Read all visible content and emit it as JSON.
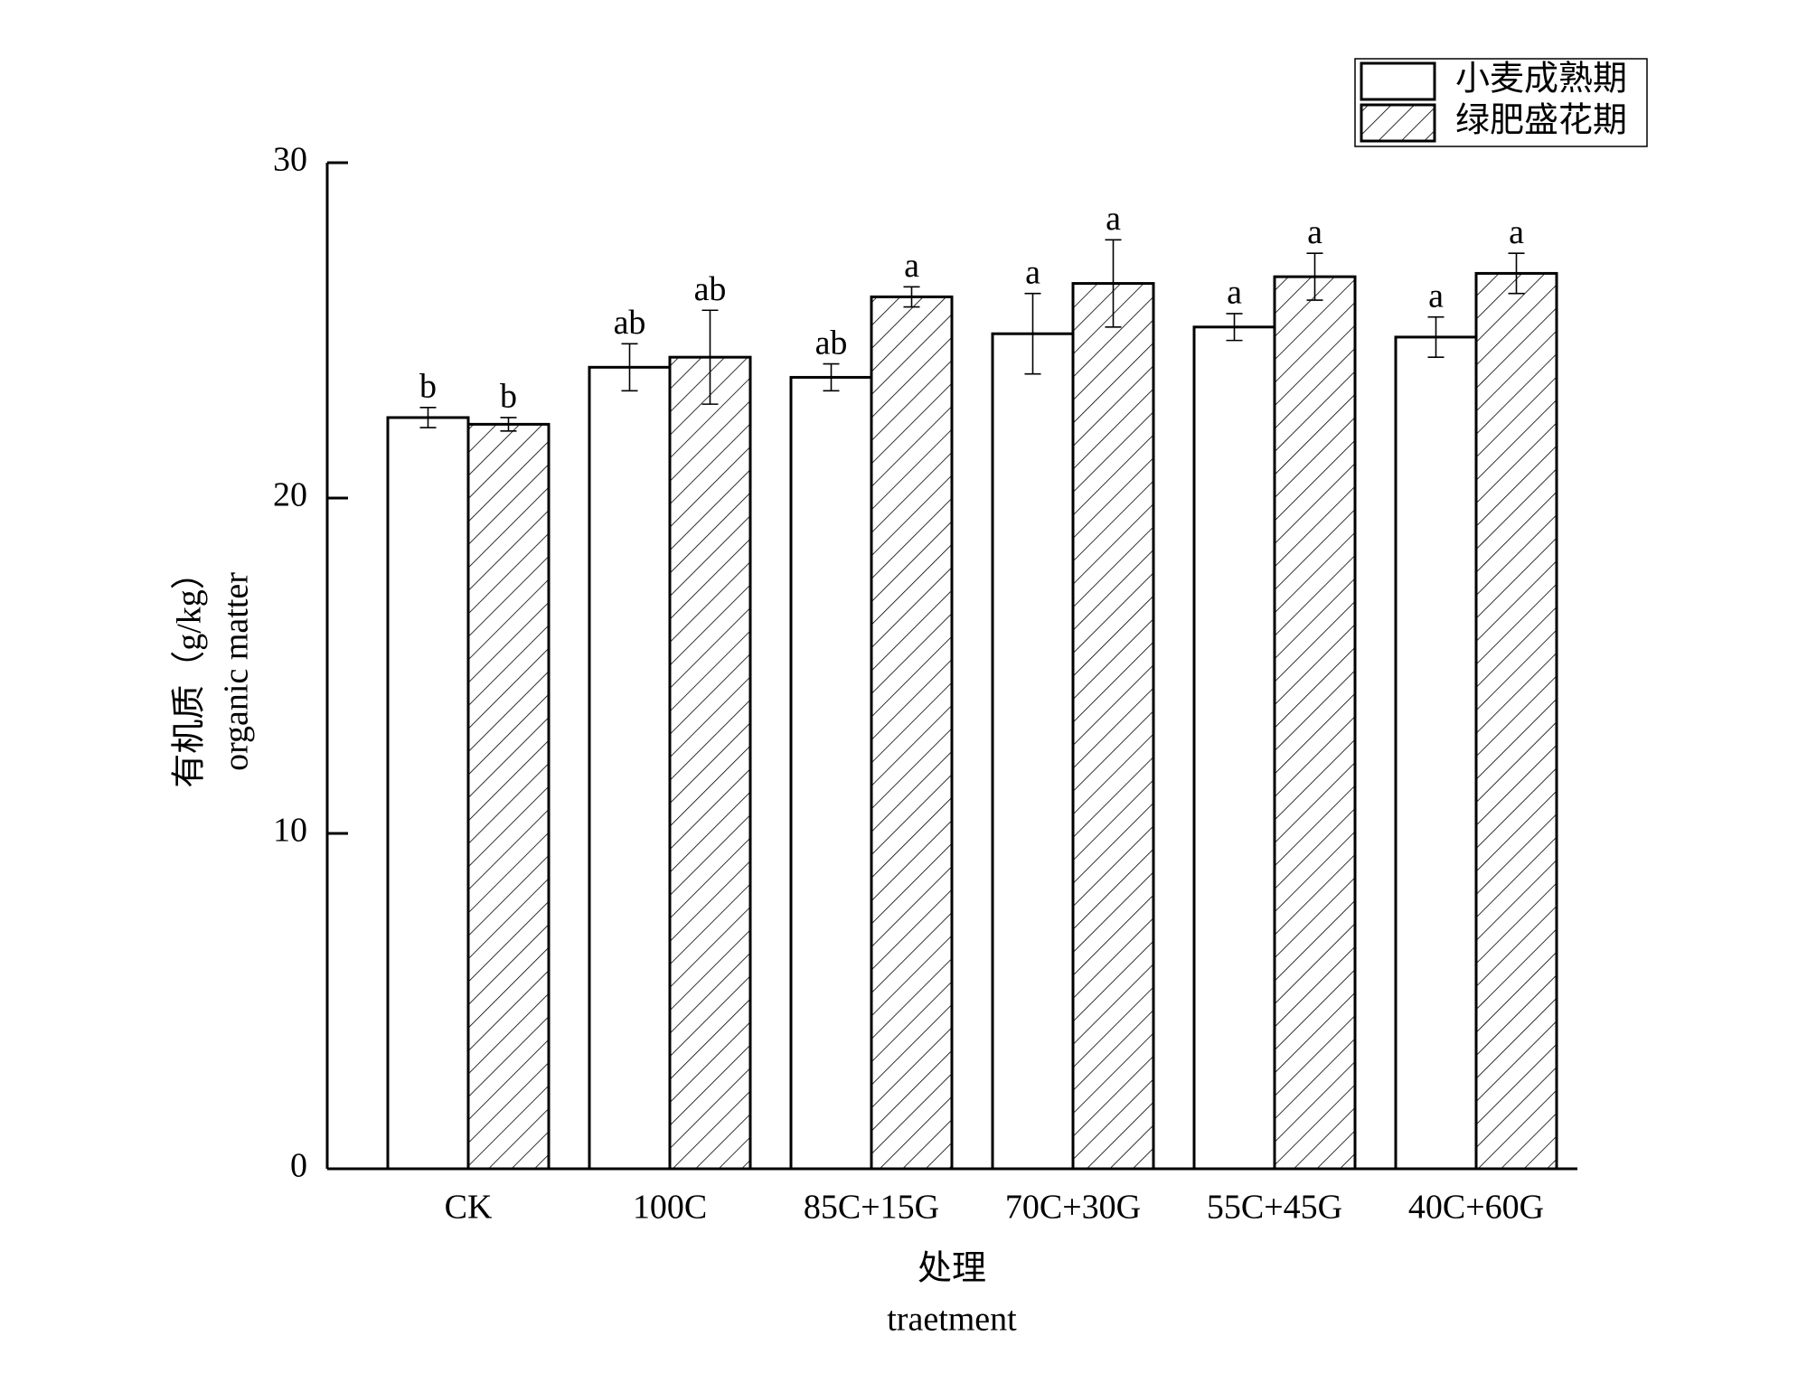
{
  "chart_data": {
    "type": "bar",
    "categories": [
      "CK",
      "100C",
      "85C+15G",
      "70C+30G",
      "55C+45G",
      "40C+60G"
    ],
    "series": [
      {
        "name": "小麦成熟期",
        "color": "#ffffff",
        "hatch": false,
        "values": [
          22.4,
          23.9,
          23.6,
          24.9,
          25.1,
          24.8
        ],
        "errors": [
          0.3,
          0.7,
          0.4,
          1.2,
          0.4,
          0.6
        ],
        "letters": [
          "b",
          "ab",
          "ab",
          "a",
          "a",
          "a"
        ]
      },
      {
        "name": "绿肥盛花期",
        "color": "#ffffff",
        "hatch": true,
        "values": [
          22.2,
          24.2,
          26.0,
          26.4,
          26.6,
          26.7
        ],
        "errors": [
          0.2,
          1.4,
          0.3,
          1.3,
          0.7,
          0.6
        ],
        "letters": [
          "b",
          "ab",
          "a",
          "a",
          "a",
          "a"
        ]
      }
    ],
    "ylim": [
      0,
      30
    ],
    "yticks": [
      0,
      10,
      20,
      30
    ],
    "ylabel": [
      "有机质（g/kg）",
      "organic matter"
    ],
    "xlabel": [
      "处理",
      "traetment"
    ],
    "legend": "upper right"
  }
}
